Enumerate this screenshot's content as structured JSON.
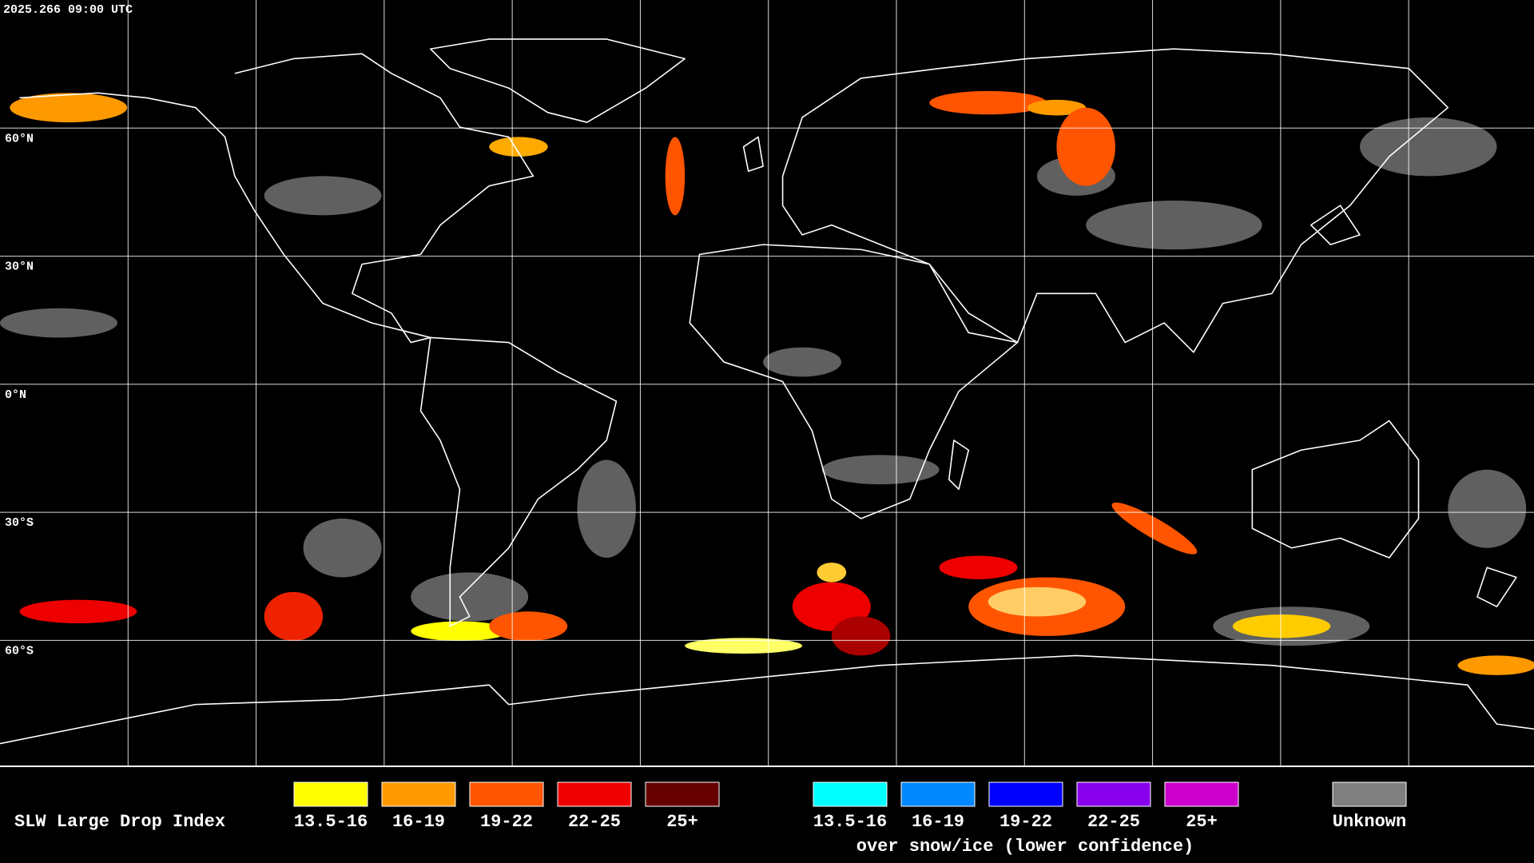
{
  "header": {
    "timestamp": "2025.266 09:00 UTC"
  },
  "map": {
    "latitude_labels": [
      "60°N",
      "30°N",
      "0°N",
      "30°S",
      "60°S"
    ]
  },
  "legend": {
    "title": "SLW Large Drop Index",
    "items": [
      {
        "label": "13.5-16",
        "color": "#ffff00"
      },
      {
        "label": "16-19",
        "color": "#ff9900"
      },
      {
        "label": "19-22",
        "color": "#ff5500"
      },
      {
        "label": "22-25",
        "color": "#ee0000"
      },
      {
        "label": "25+",
        "color": "#660000"
      }
    ],
    "snow_ice_items": [
      {
        "label": "13.5-16",
        "color": "#00ffff"
      },
      {
        "label": "16-19",
        "color": "#0088ff"
      },
      {
        "label": "19-22",
        "color": "#0000ff"
      },
      {
        "label": "22-25",
        "color": "#8800ee"
      },
      {
        "label": "25+",
        "color": "#cc00cc"
      }
    ],
    "snow_ice_note": "over snow/ice (lower confidence)",
    "unknown": {
      "label": "Unknown",
      "color": "#808080"
    }
  }
}
